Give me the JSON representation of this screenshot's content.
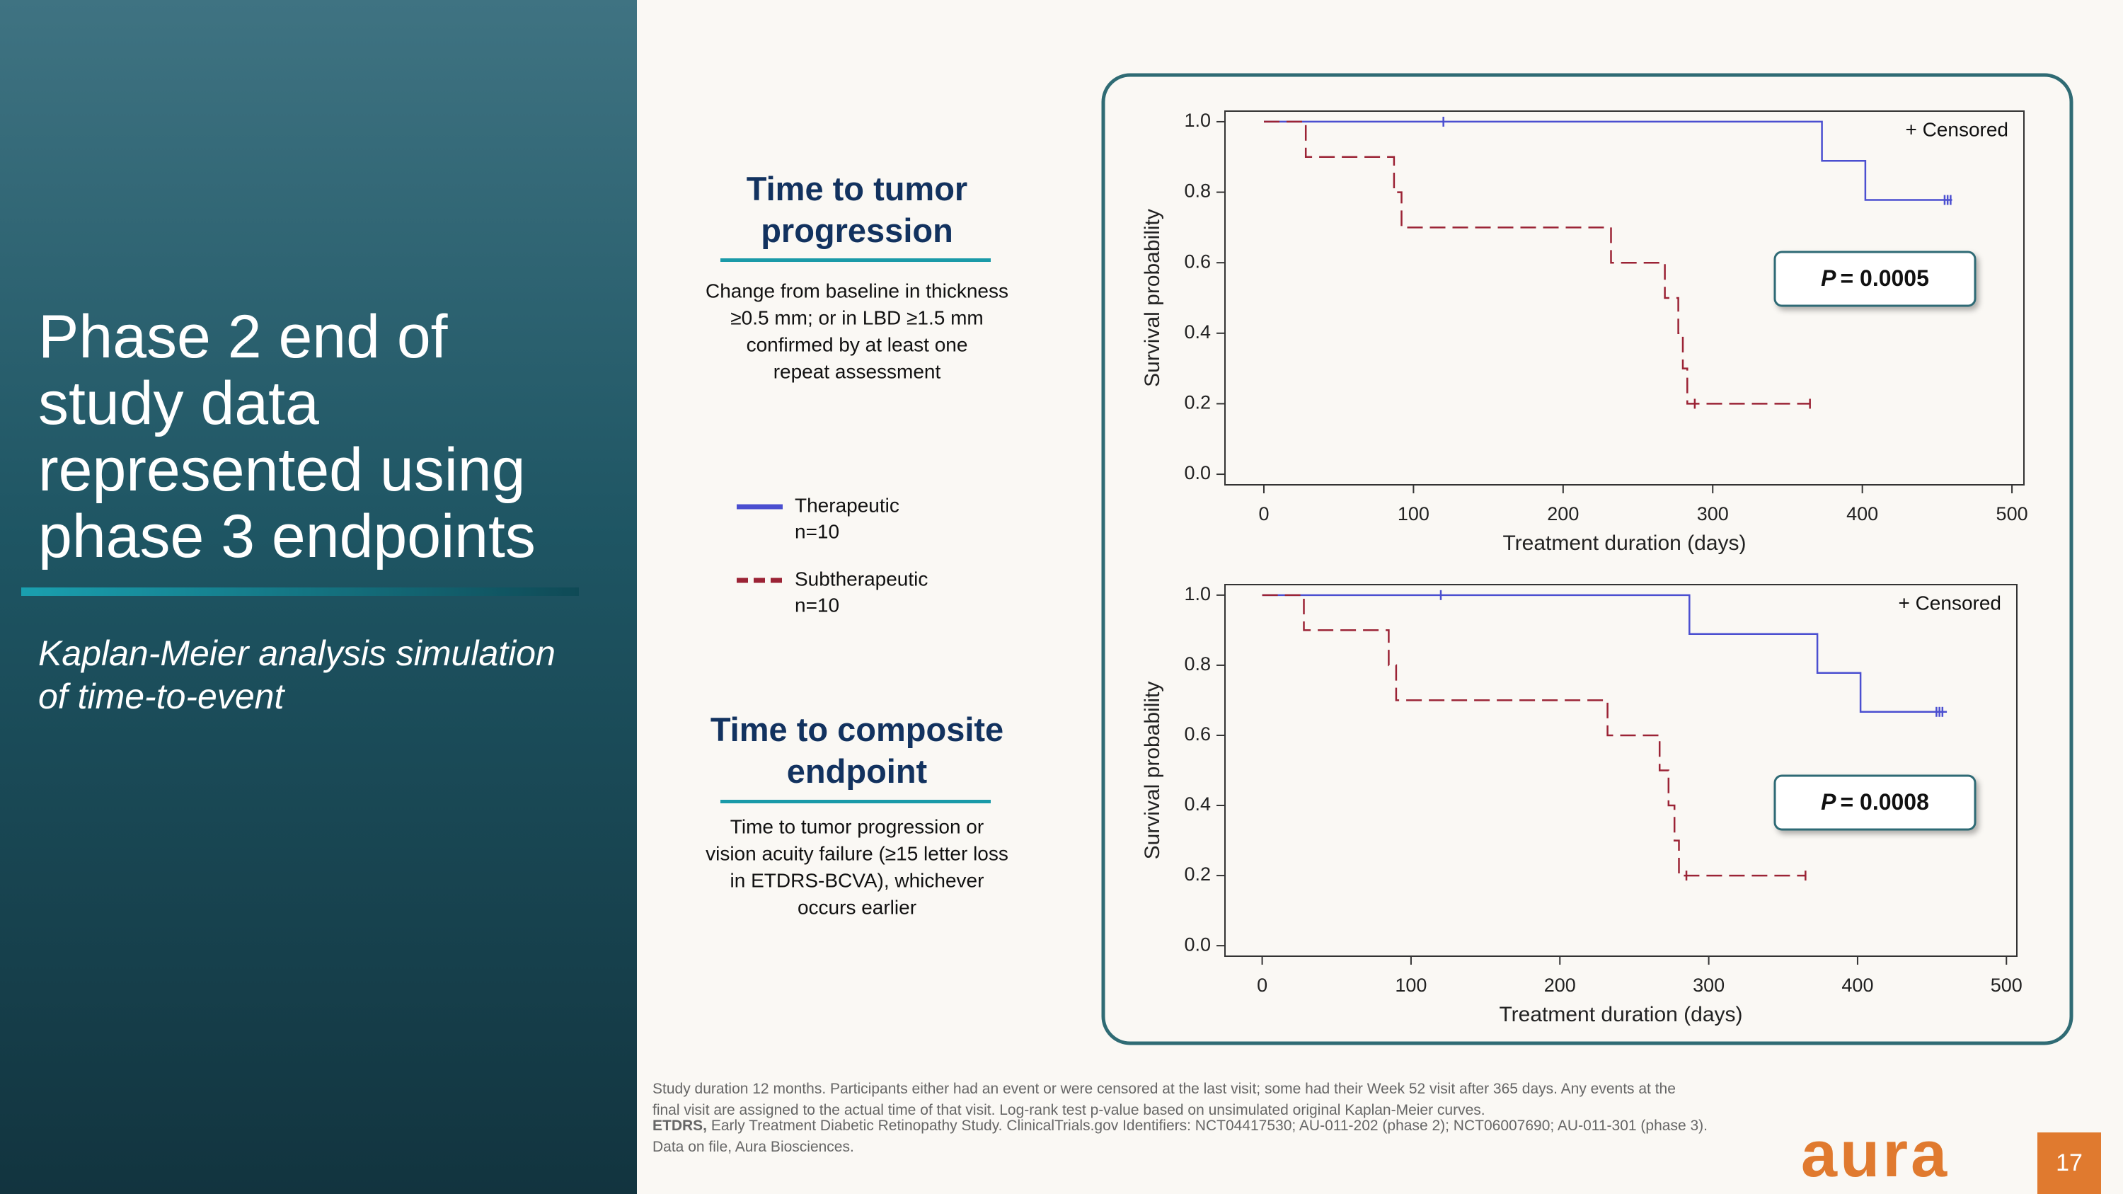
{
  "slide": {
    "title_lines": [
      "Phase 2 end of",
      "study data",
      "represented using",
      "phase 3 endpoints"
    ],
    "subtitle_lines": [
      "Kaplan-Meier analysis simulation",
      "of time-to-event"
    ],
    "sections": [
      {
        "heading_lines": [
          "Time to tumor",
          "progression"
        ],
        "description_lines": [
          "Change from baseline in thickness",
          "≥0.5 mm; or in LBD ≥1.5 mm",
          "confirmed by at least one",
          "repeat assessment"
        ]
      },
      {
        "heading_lines": [
          "Time to composite",
          "endpoint"
        ],
        "description_lines": [
          "Time to tumor progression or",
          "vision acuity failure (≥15 letter loss",
          "in ETDRS-BCVA), whichever",
          "occurs earlier"
        ]
      }
    ],
    "footnote": {
      "lines": [
        "Study duration 12 months. Participants either had an event or were censored at the last visit; some had their Week 52 visit after 365 days. Any events at the",
        "final visit are assigned to the actual time of that visit. Log-rank test p-value based on unsimulated original Kaplan-Meier curves."
      ],
      "abbrev_term": "ETDRS,",
      "abbrev_rest": " Early Treatment Diabetic Retinopathy Study. ClinicalTrials.gov Identifiers: NCT04417530; AU-011-202 (phase 2); NCT06007690; AU-011-301 (phase 3).",
      "last_line": "Data on file, Aura Biosciences."
    },
    "logo": "aura",
    "page_number": "17"
  },
  "chart_data": [
    {
      "type": "line",
      "step": true,
      "xlabel": "Treatment duration (days)",
      "ylabel": "Survival probability",
      "xlim": [
        -26,
        508
      ],
      "ylim": [
        -0.03,
        1.03
      ],
      "xticks": [
        0,
        100,
        200,
        300,
        400,
        500
      ],
      "yticks": [
        {
          "value": 0,
          "label": "0.0"
        },
        0.2,
        0.4,
        0.6,
        0.8,
        {
          "value": 1,
          "label": "1.0"
        }
      ],
      "censored_label": "+ Censored",
      "p_symbol": "P",
      "p_text": "= 0.0005",
      "series": [
        {
          "name": "Therapeutic",
          "n_label": "n=10",
          "color": "#4b4fd0",
          "dashed": false,
          "x": [
            0,
            373,
            373,
            402,
            402,
            460
          ],
          "values": [
            1,
            1,
            0.889,
            0.889,
            0.778,
            0.778
          ],
          "censored": {
            "x": [
              120,
              455,
              457,
              459
            ],
            "values": [
              1,
              0.778,
              0.778,
              0.778
            ]
          }
        },
        {
          "name": "Subtherapeutic",
          "n_label": "n=10",
          "color": "#9b2335",
          "dashed": true,
          "x": [
            0,
            28,
            28,
            87,
            87,
            92,
            92,
            232,
            232,
            268,
            268,
            277,
            277,
            280,
            280,
            283,
            283,
            365
          ],
          "values": [
            1,
            1,
            0.9,
            0.9,
            0.8,
            0.8,
            0.7,
            0.7,
            0.6,
            0.6,
            0.5,
            0.5,
            0.4,
            0.4,
            0.3,
            0.3,
            0.2,
            0.2
          ],
          "censored": {
            "x": [
              288,
              365
            ],
            "values": [
              0.2,
              0.2
            ]
          }
        }
      ]
    },
    {
      "type": "line",
      "step": true,
      "xlabel": "Treatment duration (days)",
      "ylabel": "Survival probability",
      "xlim": [
        -25,
        507
      ],
      "ylim": [
        -0.03,
        1.03
      ],
      "xticks": [
        0,
        100,
        200,
        300,
        400,
        500
      ],
      "yticks": [
        {
          "value": 0,
          "label": "0.0"
        },
        0.2,
        0.4,
        0.6,
        0.8,
        {
          "value": 1,
          "label": "1.0"
        }
      ],
      "censored_label": "+ Censored",
      "p_symbol": "P",
      "p_text": "= 0.0008",
      "series": [
        {
          "name": "Therapeutic",
          "n_label": "n=10",
          "color": "#4b4fd0",
          "dashed": false,
          "x": [
            0,
            287,
            287,
            373,
            373,
            402,
            402,
            460
          ],
          "values": [
            1,
            1,
            0.889,
            0.889,
            0.778,
            0.778,
            0.667,
            0.667
          ],
          "censored": {
            "x": [
              120,
              453,
              455,
              457
            ],
            "values": [
              1,
              0.667,
              0.667,
              0.667
            ]
          }
        },
        {
          "name": "Subtherapeutic",
          "n_label": "n=10",
          "color": "#9b2335",
          "dashed": true,
          "x": [
            0,
            28,
            28,
            85,
            85,
            90,
            90,
            232,
            232,
            267,
            267,
            273,
            273,
            277,
            277,
            280,
            280,
            365
          ],
          "values": [
            1,
            1,
            0.9,
            0.9,
            0.8,
            0.8,
            0.7,
            0.7,
            0.6,
            0.6,
            0.5,
            0.5,
            0.4,
            0.4,
            0.3,
            0.3,
            0.2,
            0.2
          ],
          "censored": {
            "x": [
              285,
              365
            ],
            "values": [
              0.2,
              0.2
            ]
          }
        }
      ]
    }
  ]
}
